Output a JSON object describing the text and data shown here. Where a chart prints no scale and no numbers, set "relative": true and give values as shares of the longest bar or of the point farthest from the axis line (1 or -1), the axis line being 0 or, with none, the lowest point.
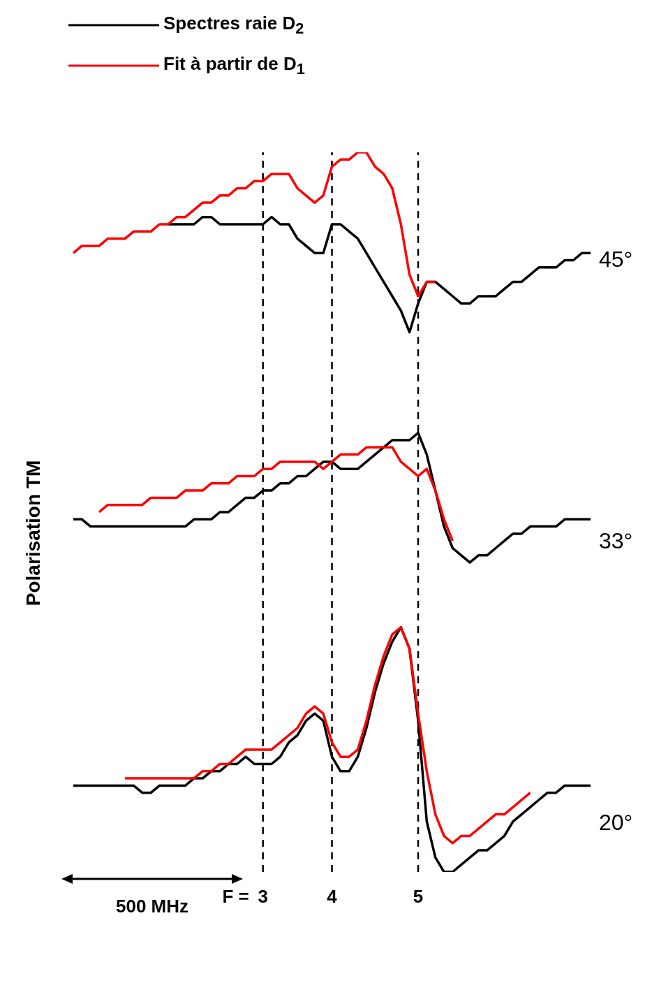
{
  "chart_data": {
    "type": "line",
    "relative": true,
    "ylabel": "Polarisation TM",
    "legend": "top left",
    "marker": "none",
    "line_style": "solid",
    "grid": false,
    "tick_labels": "x",
    "categories": [
      null,
      null,
      null,
      null,
      null,
      null,
      null,
      null,
      null,
      null,
      null,
      null,
      null,
      null,
      null,
      null,
      null,
      null,
      null,
      null,
      null,
      null,
      "3",
      null,
      null,
      null,
      null,
      null,
      null,
      null,
      "4",
      null,
      null,
      null,
      null,
      null,
      null,
      null,
      null,
      null,
      "5",
      null,
      null,
      null,
      null,
      null,
      null,
      null,
      null,
      null,
      null,
      null,
      null,
      null,
      null,
      null,
      null,
      null,
      null,
      null,
      null
    ],
    "series": [
      {
        "name": "Spectres raie D$_{2}$",
        "color": "#000000",
        "values": [
          null,
          null,
          null,
          null,
          null,
          null,
          null,
          null,
          null,
          null,
          null,
          0.9,
          0.9,
          0.9,
          0.9,
          0.91,
          0.91,
          0.9,
          0.9,
          0.9,
          0.9,
          0.9,
          0.9,
          0.91,
          0.9,
          0.9,
          0.88,
          0.87,
          0.86,
          0.86,
          0.9,
          0.9,
          0.89,
          0.88,
          0.86,
          0.84,
          0.82,
          0.8,
          0.78,
          0.75,
          0.79,
          0.82,
          0.82,
          0.81,
          0.8,
          0.79,
          0.79,
          0.8,
          0.8,
          0.8,
          0.81,
          0.82,
          0.82,
          0.83,
          0.84,
          0.84,
          0.84,
          0.85,
          0.85,
          0.86,
          0.86
        ]
      },
      {
        "name": "Fit à partir de D$_{1}$",
        "color": "#ff0000",
        "values": [
          0.86,
          0.87,
          0.87,
          0.87,
          0.88,
          0.88,
          0.88,
          0.89,
          0.89,
          0.89,
          0.9,
          0.9,
          0.91,
          0.91,
          0.92,
          0.93,
          0.93,
          0.94,
          0.94,
          0.95,
          0.95,
          0.96,
          0.96,
          0.97,
          0.97,
          0.97,
          0.95,
          0.94,
          0.93,
          0.94,
          0.98,
          0.99,
          0.99,
          1.0,
          1.0,
          0.98,
          0.97,
          0.95,
          0.9,
          0.83,
          0.8,
          0.82,
          0.82,
          null,
          null,
          null,
          null,
          null,
          null,
          null,
          null,
          null,
          null,
          null,
          null,
          null,
          null,
          null,
          null,
          null,
          null
        ]
      },
      {
        "color": "#000000",
        "values": [
          0.49,
          0.49,
          0.48,
          0.48,
          0.48,
          0.48,
          0.48,
          0.48,
          0.48,
          0.48,
          0.48,
          0.48,
          0.48,
          0.48,
          0.49,
          0.49,
          0.49,
          0.5,
          0.5,
          0.51,
          0.52,
          0.52,
          0.53,
          0.53,
          0.54,
          0.54,
          0.55,
          0.55,
          0.56,
          0.57,
          0.57,
          0.56,
          0.56,
          0.56,
          0.57,
          0.58,
          0.59,
          0.6,
          0.6,
          0.6,
          0.61,
          0.58,
          0.53,
          0.48,
          0.45,
          0.44,
          0.43,
          0.44,
          0.44,
          0.45,
          0.46,
          0.47,
          0.47,
          0.48,
          0.48,
          0.48,
          0.48,
          0.49,
          0.49,
          0.49,
          0.49
        ]
      },
      {
        "color": "#ff0000",
        "values": [
          null,
          null,
          null,
          0.5,
          0.51,
          0.51,
          0.51,
          0.51,
          0.51,
          0.52,
          0.52,
          0.52,
          0.52,
          0.53,
          0.53,
          0.53,
          0.54,
          0.54,
          0.54,
          0.55,
          0.55,
          0.55,
          0.56,
          0.56,
          0.57,
          0.57,
          0.57,
          0.57,
          0.57,
          0.56,
          0.57,
          0.58,
          0.58,
          0.58,
          0.59,
          0.59,
          0.59,
          0.59,
          0.57,
          0.56,
          0.55,
          0.56,
          0.53,
          0.49,
          0.46,
          null,
          null,
          null,
          null,
          null,
          null,
          null,
          null,
          null,
          null,
          null,
          null,
          null,
          null,
          null,
          null
        ]
      },
      {
        "color": "#000000",
        "values": [
          0.12,
          0.12,
          0.12,
          0.12,
          0.12,
          0.12,
          0.12,
          0.12,
          0.11,
          0.11,
          0.12,
          0.12,
          0.12,
          0.12,
          0.13,
          0.13,
          0.14,
          0.14,
          0.15,
          0.15,
          0.16,
          0.15,
          0.15,
          0.15,
          0.16,
          0.18,
          0.19,
          0.21,
          0.22,
          0.21,
          0.16,
          0.14,
          0.14,
          0.16,
          0.2,
          0.25,
          0.29,
          0.32,
          0.34,
          0.31,
          0.21,
          0.07,
          0.02,
          0,
          0,
          0.01,
          0.02,
          0.03,
          0.03,
          0.04,
          0.05,
          0.07,
          0.08,
          0.09,
          0.1,
          0.11,
          0.11,
          0.12,
          0.12,
          0.12,
          0.12
        ]
      },
      {
        "color": "#ff0000",
        "values": [
          null,
          null,
          null,
          null,
          null,
          null,
          0.13,
          0.13,
          0.13,
          0.13,
          0.13,
          0.13,
          0.13,
          0.13,
          0.13,
          0.14,
          0.14,
          0.15,
          0.15,
          0.16,
          0.17,
          0.17,
          0.17,
          0.17,
          0.18,
          0.19,
          0.2,
          0.22,
          0.23,
          0.22,
          0.18,
          0.16,
          0.16,
          0.17,
          0.21,
          0.26,
          0.3,
          0.33,
          0.34,
          0.31,
          0.22,
          0.14,
          0.08,
          0.05,
          0.04,
          0.05,
          0.05,
          0.06,
          0.07,
          0.08,
          0.08,
          0.09,
          0.1,
          0.11,
          null,
          null,
          null,
          null,
          null,
          null,
          null
        ]
      }
    ],
    "ref_lines": [
      {
        "axis": "x",
        "value": "3",
        "color": "#000000",
        "line_style": "dashed"
      },
      {
        "axis": "x",
        "value": "4",
        "color": "#000000",
        "line_style": "dashed"
      },
      {
        "axis": "x",
        "value": "5",
        "color": "#000000",
        "line_style": "dashed"
      }
    ],
    "annotations": [
      "45°",
      "33°",
      "20°",
      "500 MHz",
      "F ="
    ]
  }
}
